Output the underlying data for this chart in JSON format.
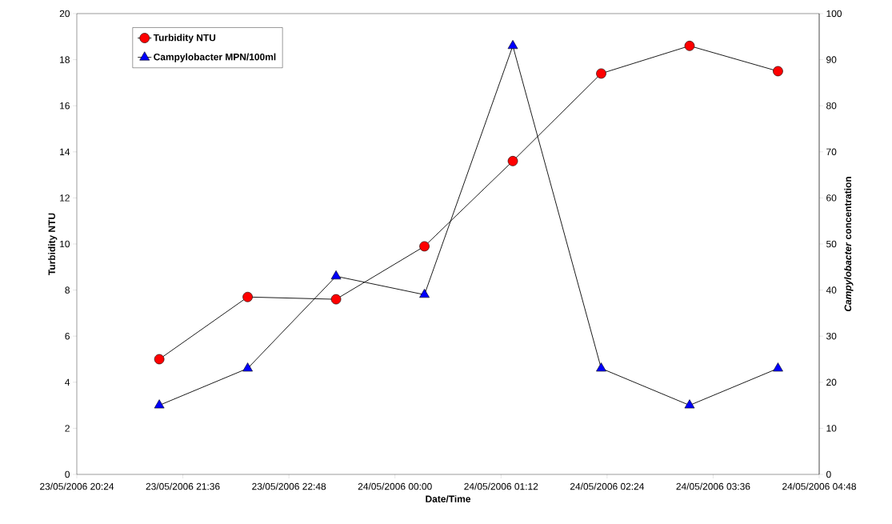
{
  "chart_data": {
    "type": "line",
    "xlabel": "Date/Time",
    "ylabel": "Turbidity NTU",
    "y2label": "*Campylobacter* concentration",
    "x": [
      "2006-05-23T21:20",
      "2006-05-23T22:20",
      "2006-05-23T23:20",
      "2006-05-24T00:20",
      "2006-05-24T01:20",
      "2006-05-24T02:20",
      "2006-05-24T03:20",
      "2006-05-24T04:20"
    ],
    "series": [
      {
        "name": "Turbidity NTU",
        "color": "#ff0000",
        "marker": "circle",
        "values": [
          5.0,
          7.7,
          7.6,
          9.9,
          13.6,
          17.4,
          18.6,
          17.5
        ]
      },
      {
        "name": "Campylobacter MPN/100ml",
        "color": "#0000ff",
        "marker": "triangle",
        "axis": "y2",
        "values": [
          15,
          23,
          43,
          39,
          93,
          23,
          15,
          23
        ]
      }
    ],
    "xlim": [
      "2006-05-23T20:24",
      "2006-05-24T04:48"
    ],
    "xticks": [
      {
        "value": "2006-05-23T20:24",
        "label": "23/05/2006 20:24"
      },
      {
        "value": "2006-05-23T21:36",
        "label": "23/05/2006 21:36"
      },
      {
        "value": "2006-05-23T22:48",
        "label": "23/05/2006 22:48"
      },
      {
        "value": "2006-05-24T00:00",
        "label": "24/05/2006 00:00"
      },
      {
        "value": "2006-05-24T01:12",
        "label": "24/05/2006 01:12"
      },
      {
        "value": "2006-05-24T02:24",
        "label": "24/05/2006 02:24"
      },
      {
        "value": "2006-05-24T03:36",
        "label": "24/05/2006 03:36"
      },
      {
        "value": "2006-05-24T04:48",
        "label": "24/05/2006 04:48"
      }
    ],
    "ylim": [
      0,
      20
    ],
    "yticks": [
      0,
      2,
      4,
      6,
      8,
      10,
      12,
      14,
      16,
      18,
      20
    ],
    "y2lim": [
      0,
      100
    ],
    "y2ticks": [
      0,
      10,
      20,
      30,
      40,
      50,
      60,
      70,
      80,
      90,
      100
    ],
    "grid": false,
    "legend": "top left",
    "line_style": "solid"
  }
}
